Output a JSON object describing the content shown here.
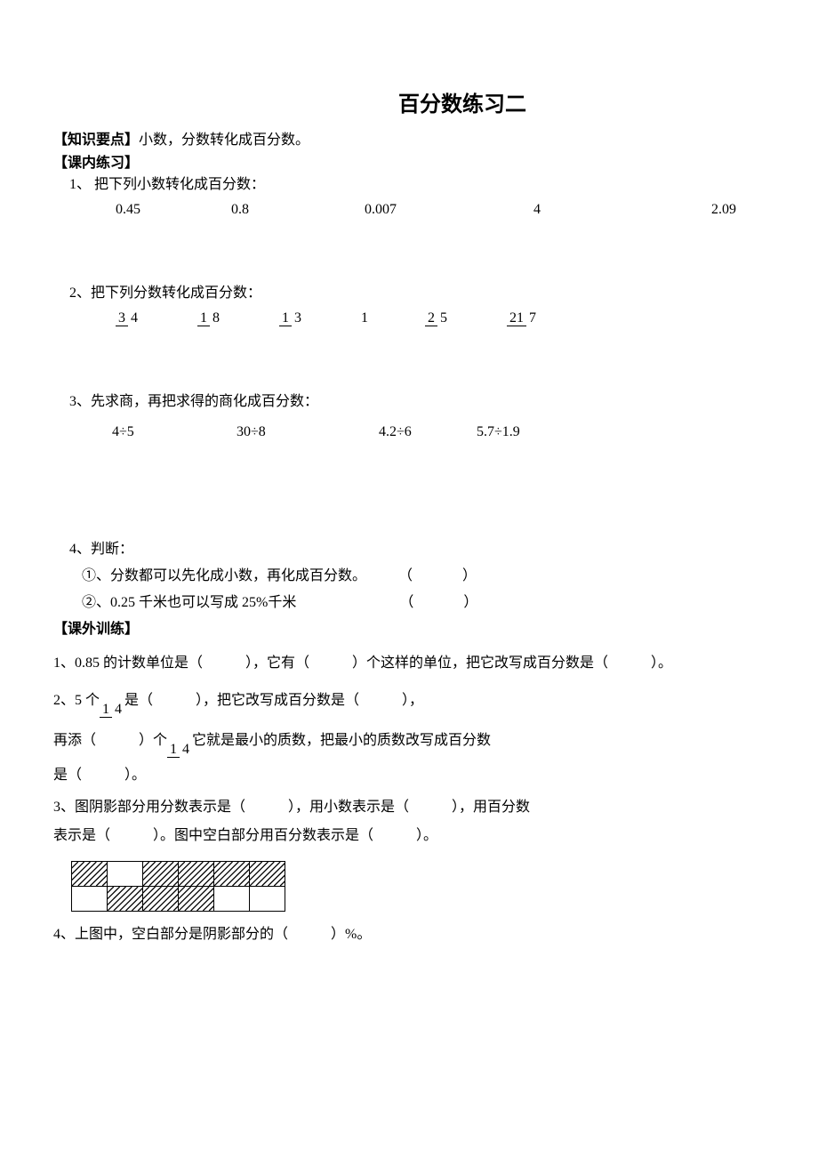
{
  "title": "百分数练习二",
  "knowledge": {
    "label": "【知识要点】",
    "text": "小数，分数转化成百分数。"
  },
  "inclass": {
    "label": "【课内练习】"
  },
  "q1": {
    "prompt": "1、 把下列小数转化成百分数：",
    "values": [
      "0.45",
      "0.8",
      "0.007",
      "4",
      "2.09"
    ]
  },
  "q2": {
    "prompt": "2、把下列分数转化成百分数：",
    "fracs": [
      {
        "n": "3",
        "d": "4"
      },
      {
        "n": "1",
        "d": "8"
      },
      {
        "n": "1",
        "d": "3"
      }
    ],
    "mid": "1",
    "fracs2": [
      {
        "n": "2",
        "d": "5"
      },
      {
        "n": "21",
        "d": "7"
      }
    ]
  },
  "q3": {
    "prompt": "3、先求商，再把求得的商化成百分数：",
    "values": [
      "4÷5",
      "30÷8",
      "4.2÷6",
      "5.7÷1.9"
    ]
  },
  "q4": {
    "prompt": "4、判断：",
    "line1": "①、分数都可以先化成小数，再化成百分数。",
    "line2": "②、0.25 千米也可以写成 25%千米",
    "blank": "（　　　）"
  },
  "outclass": {
    "label": "【课外训练】"
  },
  "ext1": "1、0.85 的计数单位是（　　　），它有（　　　）个这样的单位，把它改写成百分数是（　　　）。",
  "ext2a": "2、5 个",
  "ext2a_frac": {
    "n": "1",
    "d": "4"
  },
  "ext2a_tail": "是（　　　），把它改写成百分数是（　　　），",
  "ext2b": "再添（　　　）个",
  "ext2b_frac": {
    "n": "1",
    "d": "4"
  },
  "ext2b_tail": "它就是最小的质数，把最小的质数改写成百分数",
  "ext2c": "是（　　　）。",
  "ext3a": "3、图阴影部分用分数表示是（　　　），用小数表示是（　　　），用百分数",
  "ext3b": "表示是（　　　）。图中空白部分用百分数表示是（　　　）。",
  "ext4": "4、上图中，空白部分是阴影部分的（　　　）%。",
  "figure": {
    "rows": 2,
    "cols": 6,
    "shaded": [
      [
        0,
        0
      ],
      [
        0,
        2
      ],
      [
        0,
        3
      ],
      [
        0,
        4
      ],
      [
        0,
        5
      ],
      [
        1,
        1
      ],
      [
        1,
        2
      ],
      [
        1,
        3
      ]
    ],
    "stroke": "#000000"
  }
}
